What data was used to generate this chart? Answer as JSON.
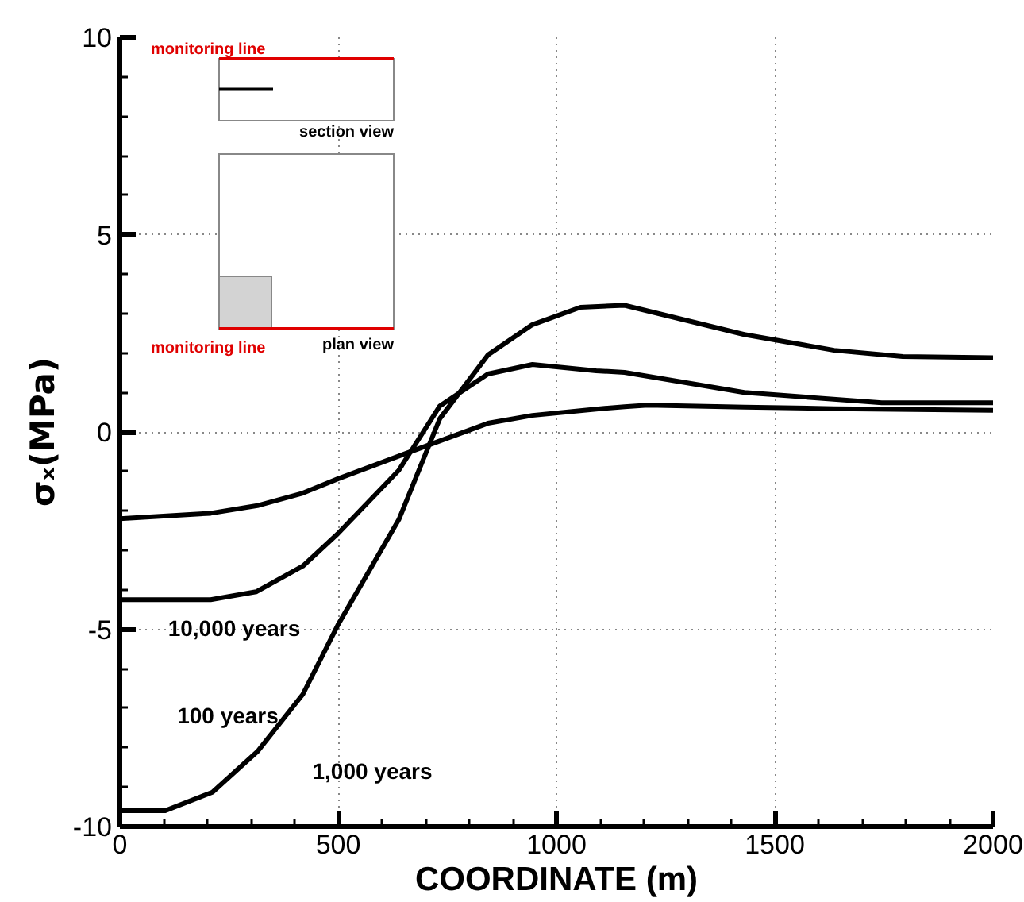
{
  "chart_data": {
    "type": "line",
    "xlabel": "COORDINATE (m)",
    "ylabel": "σₓ(MPa)",
    "xlim": [
      0,
      2000
    ],
    "ylim": [
      -10,
      10
    ],
    "xticks": [
      0,
      500,
      1000,
      1500,
      2000
    ],
    "yticks": [
      -10,
      -5,
      0,
      5,
      10
    ],
    "grid": true,
    "marker": "none",
    "line_style": "solid",
    "series": [
      {
        "color": "#000000",
        "x": [
          0,
          208,
          318,
          419,
          499,
          639,
          843,
          945,
          1091,
          1156,
          1209,
          1430,
          1636,
          2000
        ],
        "values": [
          -2.2,
          -2.06,
          -1.86,
          -1.55,
          -1.19,
          -0.61,
          0.22,
          0.42,
          0.58,
          0.64,
          0.68,
          0.63,
          0.59,
          0.55
        ]
      },
      {
        "color": "#000000",
        "x": [
          0,
          208,
          312,
          419,
          499,
          639,
          733,
          843,
          945,
          1091,
          1156,
          1430,
          1745,
          2000
        ],
        "values": [
          -4.25,
          -4.25,
          -4.05,
          -3.4,
          -2.58,
          -0.97,
          0.66,
          1.47,
          1.71,
          1.55,
          1.51,
          1.0,
          0.74,
          0.74
        ]
      },
      {
        "color": "#000000",
        "x": [
          0,
          103,
          212,
          315,
          419,
          499,
          639,
          733,
          843,
          945,
          1055,
          1156,
          1430,
          1636,
          1793,
          2000
        ],
        "values": [
          -9.6,
          -9.6,
          -9.13,
          -8.1,
          -6.65,
          -4.9,
          -2.22,
          0.34,
          1.95,
          2.72,
          3.16,
          3.21,
          2.47,
          2.07,
          1.91,
          1.88
        ]
      }
    ],
    "annotations": [
      "10,000 years",
      "100 years",
      "1,000 years",
      "monitoring line",
      "section view",
      "monitoring line",
      "plan view"
    ]
  }
}
